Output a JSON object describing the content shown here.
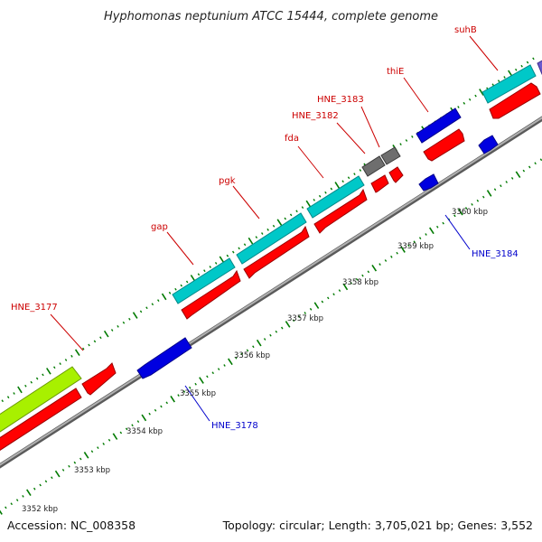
{
  "title": "Hyphomonas neptunium ATCC 15444, complete genome",
  "footer": {
    "accession": "Accession: NC_008358",
    "topology": "Topology: circular; Length: 3,705,021 bp; Genes: 3,552"
  },
  "colors": {
    "background": "#ffffff",
    "backbone": "#8a8a8a",
    "cds_forward": "#ff0000",
    "cds_reverse": "#0000ff",
    "cog_cyan": "#00c8c8",
    "cog_green": "#a8f000",
    "cog_blue": "#0000e0",
    "cog_gray": "#6e6e6e",
    "cog_purple": "#6a5acd",
    "tick_green": "#007a00",
    "label_red": "#cc0000",
    "label_blue": "#0000cc"
  },
  "ruler": {
    "labels": [
      "3352 kbp",
      "3353 kbp",
      "3354 kbp",
      "3355 kbp",
      "3356 kbp",
      "3357 kbp",
      "3358 kbp",
      "3359 kbp",
      "3360 kbp"
    ]
  },
  "gene_labels": {
    "hne_3177": "HNE_3177",
    "gap": "gap",
    "pgk": "pgk",
    "fda": "fda",
    "hne_3182": "HNE_3182",
    "hne_3183": "HNE_3183",
    "thie": "thiE",
    "suhb": "suhB",
    "hne_3178": "HNE_3178",
    "hne_3184": "HNE_3184"
  }
}
